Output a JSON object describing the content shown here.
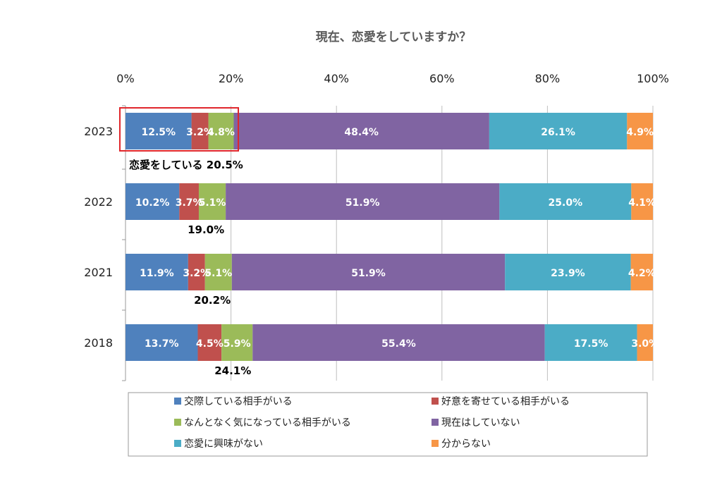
{
  "chart_data": {
    "type": "bar",
    "orientation": "horizontal-stacked-100",
    "title": "現在、恋愛をしていますか？",
    "categories": [
      "2023",
      "2022",
      "2021",
      "2018"
    ],
    "xlim": [
      0,
      100
    ],
    "x_ticks": [
      "0%",
      "20%",
      "40%",
      "60%",
      "80%",
      "100%"
    ],
    "grid": true,
    "legend_position": "bottom",
    "series": [
      {
        "name": "交際している相手がいる",
        "color": "#4f81bd",
        "values": [
          12.5,
          10.2,
          11.9,
          13.7
        ]
      },
      {
        "name": "好意を寄せている相手がいる",
        "color": "#c0504d",
        "values": [
          3.2,
          3.7,
          3.2,
          4.5
        ]
      },
      {
        "name": "なんとなく気になっている相手がいる",
        "color": "#9bbb59",
        "values": [
          4.8,
          5.1,
          5.1,
          5.9
        ]
      },
      {
        "name": "現在はしていない",
        "color": "#8064a2",
        "values": [
          48.4,
          51.9,
          51.9,
          55.4
        ]
      },
      {
        "name": "恋愛に興味がない",
        "color": "#4bacc6",
        "values": [
          26.1,
          25.0,
          23.9,
          17.5
        ]
      },
      {
        "name": "分からない",
        "color": "#f79646",
        "values": [
          4.9,
          4.1,
          4.2,
          3.0
        ]
      }
    ],
    "annotations": {
      "in_love_prefix": "恋愛をしている",
      "in_love_totals": [
        "20.5%",
        "19.0%",
        "20.2%",
        "24.1%"
      ],
      "in_love_values": [
        20.5,
        19.0,
        20.2,
        24.1
      ],
      "highlight_box_color": "#e0262b"
    }
  }
}
